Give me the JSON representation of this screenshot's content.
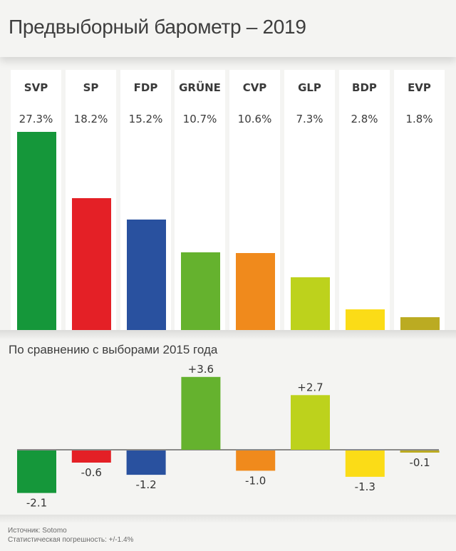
{
  "header": {
    "title": "Предвыборный барометр – 2019"
  },
  "subtitle": "По сравнению с выборами 2015 года",
  "footer": {
    "source": "Источник: Sotomo",
    "margin_of_error": "Статистическая погрешность: +/-1.4%"
  },
  "chart_data": [
    {
      "type": "bar",
      "title": "Предвыборный барометр – 2019",
      "categories": [
        "SVP",
        "SP",
        "FDP",
        "GRÜNE",
        "CVP",
        "GLP",
        "BDP",
        "EVP"
      ],
      "values": [
        27.3,
        18.2,
        15.2,
        10.7,
        10.6,
        7.3,
        2.8,
        1.8
      ],
      "labels": [
        "27.3%",
        "18.2%",
        "15.2%",
        "10.7%",
        "10.6%",
        "7.3%",
        "2.8%",
        "1.8%"
      ],
      "colors": [
        "#15973a",
        "#e42026",
        "#29519f",
        "#65b22e",
        "#f08a1c",
        "#bdd21c",
        "#fbdc17",
        "#bbab22"
      ],
      "unit": "%",
      "ylim": [
        0,
        27.3
      ],
      "grid": false,
      "legend": "none"
    },
    {
      "type": "bar",
      "title": "По сравнению с выборами 2015 года",
      "categories": [
        "SVP",
        "SP",
        "FDP",
        "GRÜNE",
        "CVP",
        "GLP",
        "BDP",
        "EVP"
      ],
      "values": [
        -2.1,
        -0.6,
        -1.2,
        3.6,
        -1.0,
        2.7,
        -1.3,
        -0.1
      ],
      "labels": [
        "-2.1",
        "-0.6",
        "-1.2",
        "+3.6",
        "-1.0",
        "+2.7",
        "-1.3",
        "-0.1"
      ],
      "colors": [
        "#15973a",
        "#e42026",
        "#29519f",
        "#65b22e",
        "#f08a1c",
        "#bdd21c",
        "#fbdc17",
        "#bbab22"
      ],
      "baseline": 0,
      "grid": false,
      "legend": "none"
    }
  ]
}
